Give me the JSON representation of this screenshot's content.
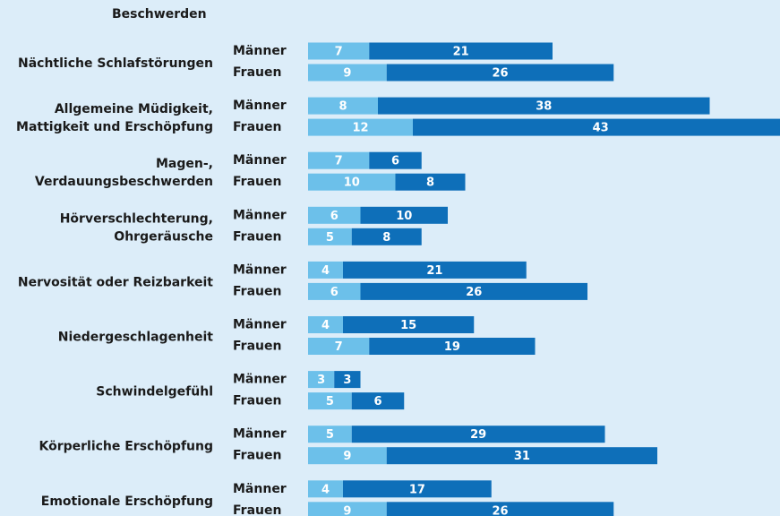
{
  "chart_data": {
    "type": "bar",
    "orientation": "horizontal",
    "stacked": true,
    "title": "Beschwerden",
    "categories": [
      [
        "Nächtliche Schlafstörungen"
      ],
      [
        "Allgemeine Müdigkeit,",
        "Mattigkeit und Erschöpfung"
      ],
      [
        "Magen-,",
        "Verdauungsbeschwerden"
      ],
      [
        "Hörverschlechterung,",
        "Ohrgeräusche"
      ],
      [
        "Nervosität oder Reizbarkeit"
      ],
      [
        "Niedergeschlagenheit"
      ],
      [
        "Schwindelgefühl"
      ],
      [
        "Körperliche Erschöpfung"
      ],
      [
        "Emotionale Erschöpfung"
      ]
    ],
    "groups": [
      "Männer",
      "Frauen"
    ],
    "series": [
      {
        "color": "#6cc0ea",
        "values": [
          [
            7,
            9
          ],
          [
            8,
            12
          ],
          [
            7,
            10
          ],
          [
            6,
            5
          ],
          [
            4,
            6
          ],
          [
            4,
            7
          ],
          [
            3,
            5
          ],
          [
            5,
            9
          ],
          [
            4,
            9
          ]
        ]
      },
      {
        "color": "#0e6fb9",
        "values": [
          [
            21,
            26
          ],
          [
            38,
            43
          ],
          [
            6,
            8
          ],
          [
            10,
            8
          ],
          [
            21,
            26
          ],
          [
            15,
            19
          ],
          [
            3,
            6
          ],
          [
            29,
            31
          ],
          [
            17,
            26
          ]
        ]
      }
    ]
  }
}
